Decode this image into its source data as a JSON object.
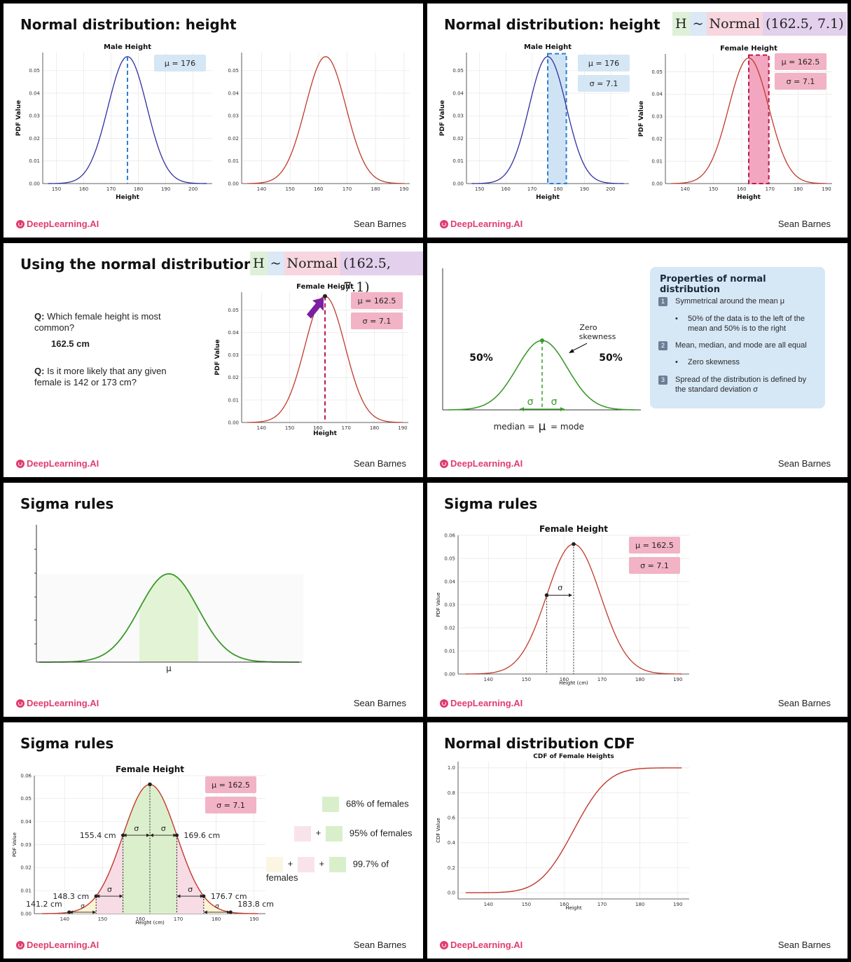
{
  "footer": {
    "brand": "DeepLearning.AI",
    "author": "Sean Barnes"
  },
  "slides": [
    {
      "title": "Normal distribution: height",
      "chart_data": [
        {
          "type": "line",
          "title": "Male Height",
          "xlabel": "Height",
          "ylabel": "PDF Value",
          "mu": 176,
          "sigma": 7.1,
          "xticks": [
            150,
            160,
            170,
            180,
            190,
            200
          ],
          "yticks": [
            "0.00",
            "0.01",
            "0.02",
            "0.03",
            "0.04",
            "0.05"
          ],
          "annot": [
            "μ = 176"
          ],
          "color": "#2f2f9f"
        },
        {
          "type": "line",
          "title": "",
          "xlabel": "",
          "ylabel": "",
          "mu": 162.5,
          "sigma": 7.1,
          "xticks": [
            140,
            150,
            160,
            170,
            180,
            190
          ],
          "yticks": [
            "0.00",
            "0.01",
            "0.02",
            "0.03",
            "0.04",
            "0.05"
          ],
          "color": "#c0392b"
        }
      ]
    },
    {
      "title": "Normal distribution: height",
      "equation": {
        "h": "H",
        "tilde": "~",
        "name": "Normal",
        "params": "(162.5, 7.1)"
      },
      "chart_data": [
        {
          "type": "line",
          "title": "Male Height",
          "xlabel": "Height",
          "ylabel": "PDF Value",
          "mu": 176,
          "sigma": 7.1,
          "xticks": [
            150,
            160,
            170,
            180,
            190,
            200
          ],
          "yticks": [
            "0.00",
            "0.01",
            "0.02",
            "0.03",
            "0.04",
            "0.05"
          ],
          "annot": [
            "μ = 176",
            "σ = 7.1"
          ],
          "color": "#2f2f9f"
        },
        {
          "type": "line",
          "title": "Female Height",
          "xlabel": "Height",
          "ylabel": "PDF Value",
          "mu": 162.5,
          "sigma": 7.1,
          "xticks": [
            140,
            150,
            160,
            170,
            180,
            190
          ],
          "yticks": [
            "0.00",
            "0.01",
            "0.02",
            "0.03",
            "0.04",
            "0.05"
          ],
          "annot": [
            "μ = 162.5",
            "σ = 7.1"
          ],
          "color": "#c0392b"
        }
      ]
    },
    {
      "title": "Using the normal distribution",
      "equation": {
        "h": "H",
        "tilde": "~",
        "name": "Normal",
        "params": "(162.5, 7.1)"
      },
      "q1_label": "Q:",
      "q1": "Which female height is most common?",
      "a1": "162.5 cm",
      "q2_label": "Q:",
      "q2": "Is it more likely that any given female is 142 or 173 cm?",
      "chart_data": {
        "type": "line",
        "title": "Female Height",
        "xlabel": "Height",
        "ylabel": "PDF Value",
        "mu": 162.5,
        "sigma": 7.1,
        "xticks": [
          140,
          150,
          160,
          170,
          180,
          190
        ],
        "yticks": [
          "0.00",
          "0.01",
          "0.02",
          "0.03",
          "0.04",
          "0.05"
        ],
        "annot": [
          "μ = 162.5",
          "σ = 7.1"
        ],
        "color": "#c0392b"
      }
    },
    {
      "title": "",
      "left_pct": "50%",
      "right_pct": "50%",
      "zero_skew": "Zero skewness",
      "sigma": "σ",
      "median_label": "median =",
      "mu_symbol": "μ",
      "mode_label": "= mode",
      "props": {
        "heading": "Properties of normal distribution",
        "items": [
          {
            "n": "1",
            "text": "Symmetrical around the mean μ",
            "sub": "50% of the data is to the left of the mean and 50% is to the right"
          },
          {
            "n": "2",
            "text": "Mean, median, and mode are all equal",
            "sub": "Zero skewness"
          },
          {
            "n": "3",
            "text": "Spread of the distribution is defined by the standard deviation σ",
            "sub": ""
          }
        ]
      }
    },
    {
      "title": "Sigma rules",
      "mu_label": "μ"
    },
    {
      "title": "Sigma rules",
      "chart_data": {
        "type": "line",
        "title": "Female Height",
        "xlabel": "Height (cm)",
        "ylabel": "PDF Value",
        "mu": 162.5,
        "sigma": 7.1,
        "xticks": [
          140,
          150,
          160,
          170,
          180,
          190
        ],
        "yticks": [
          "0.00",
          "0.01",
          "0.02",
          "0.03",
          "0.04",
          "0.05",
          "0.06"
        ],
        "annot": [
          "μ = 162.5",
          "σ = 7.1"
        ],
        "color": "#c0392b"
      }
    },
    {
      "title": "Sigma rules",
      "chart_data": {
        "type": "area",
        "title": "Female Height",
        "xlabel": "Height (cm)",
        "ylabel": "PDF Value",
        "mu": 162.5,
        "sigma": 7.1,
        "xticks": [
          140,
          150,
          160,
          170,
          180,
          190
        ],
        "yticks": [
          "0.00",
          "0.01",
          "0.02",
          "0.03",
          "0.04",
          "0.05",
          "0.06"
        ],
        "annot": [
          "μ = 162.5",
          "σ = 7.1"
        ],
        "color": "#c0392b",
        "marks": [
          "155.4 cm",
          "169.6 cm",
          "148.3 cm",
          "176.7 cm",
          "141.2 cm",
          "183.8 cm"
        ]
      },
      "legend": [
        "68% of females",
        "95% of females",
        "99.7% of females"
      ],
      "plus": "+"
    },
    {
      "title": "Normal distribution CDF",
      "chart_data": {
        "type": "line",
        "title": "CDF of Female Heights",
        "xlabel": "Height",
        "ylabel": "CDF Value",
        "mu": 162.5,
        "sigma": 7.1,
        "xticks": [
          140,
          150,
          160,
          170,
          180,
          190
        ],
        "yticks": [
          "0.0",
          "0.2",
          "0.4",
          "0.6",
          "0.8",
          "1.0"
        ],
        "color": "#c0392b"
      }
    }
  ]
}
